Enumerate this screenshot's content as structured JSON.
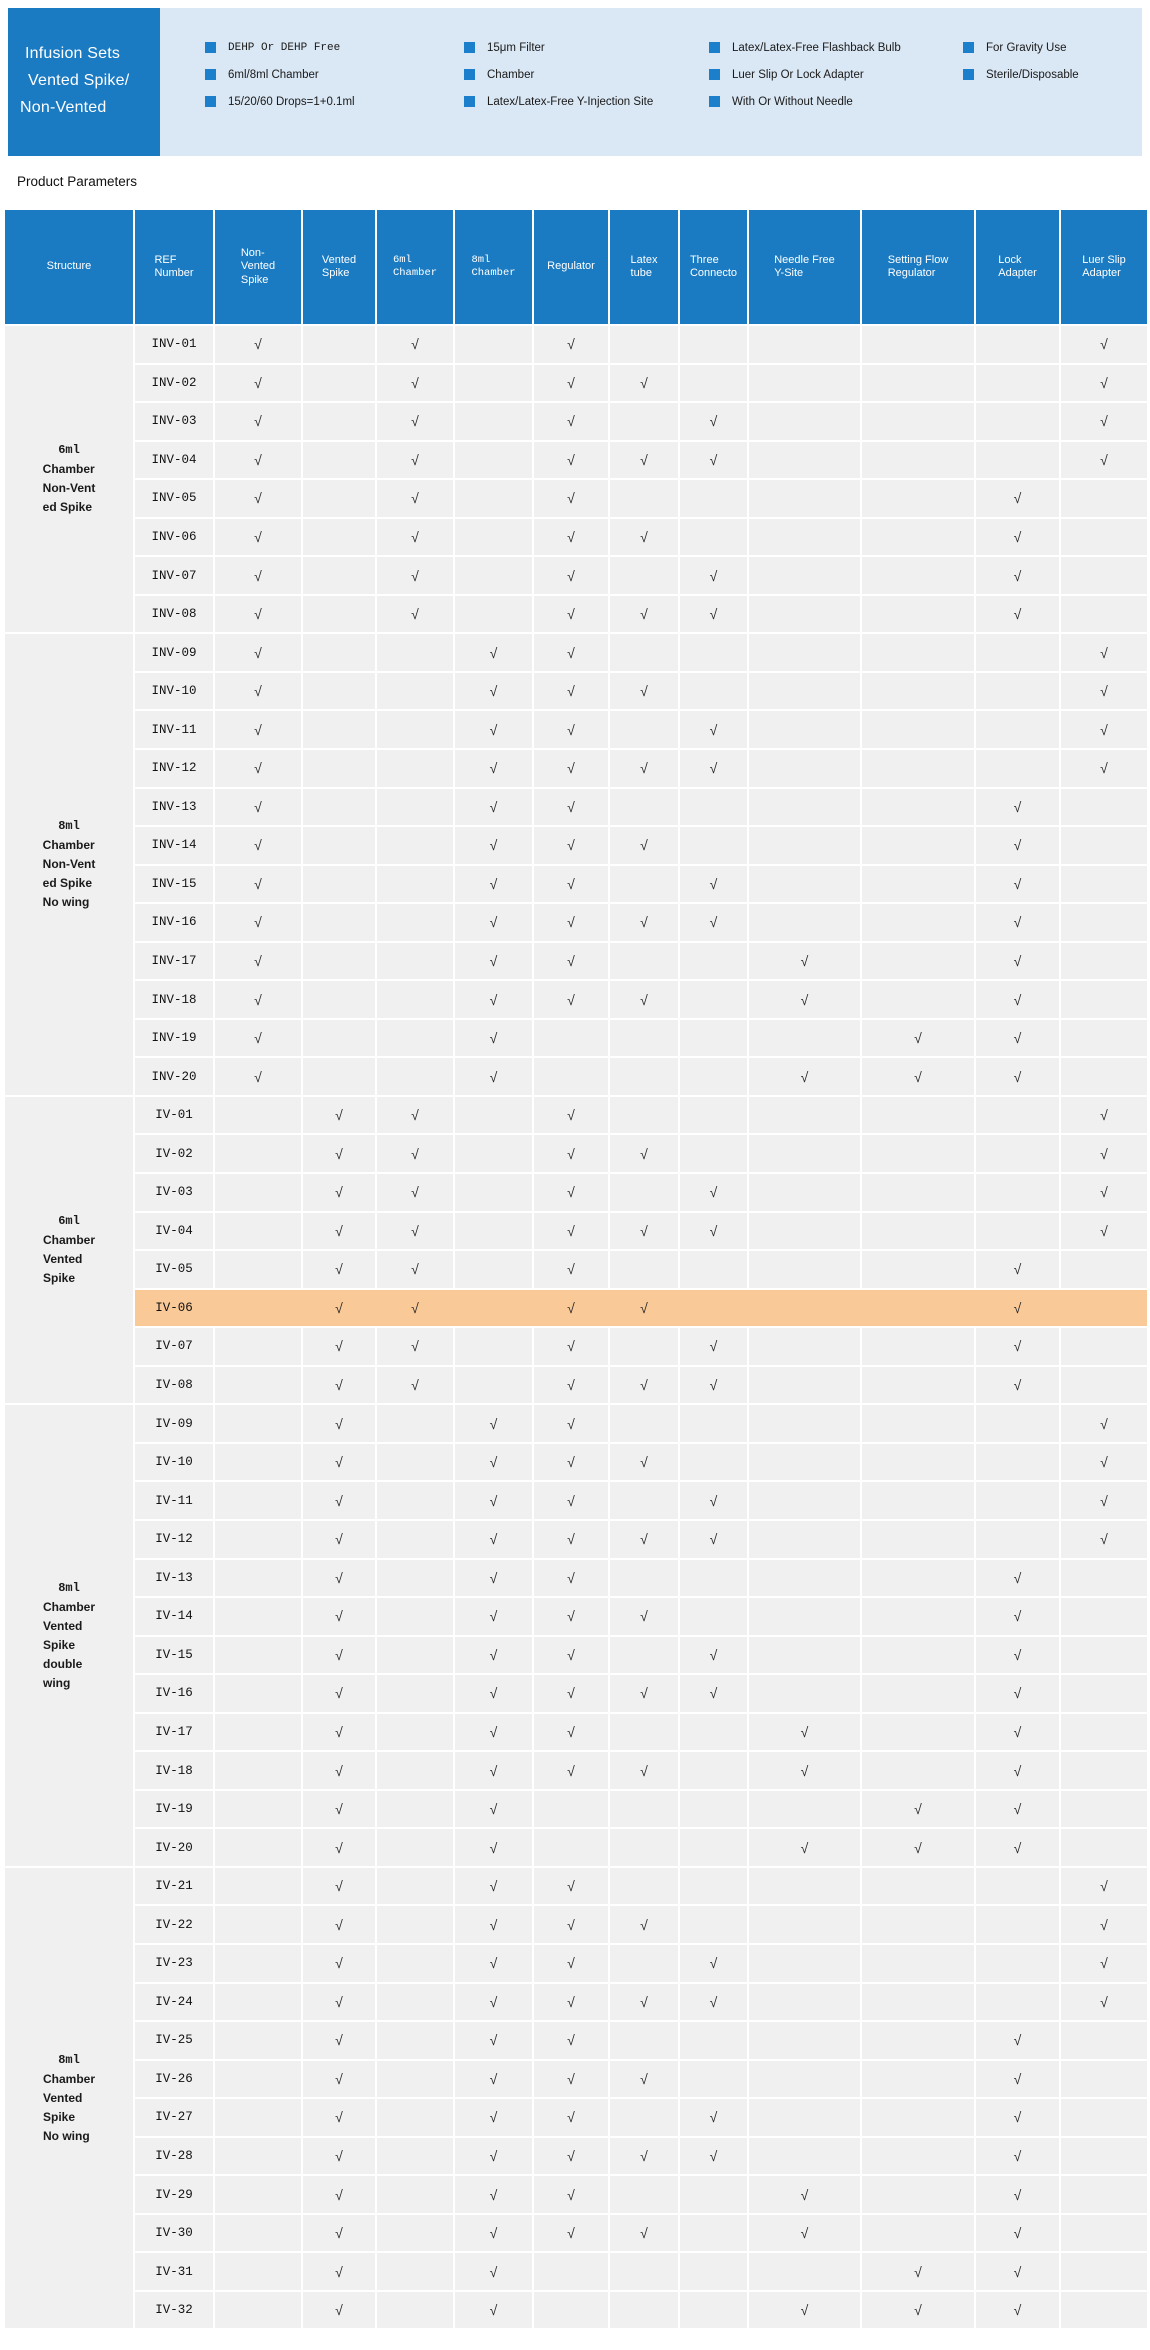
{
  "banner": {
    "title_lines": [
      "Infusion Sets",
      "Vented Spike/",
      "Non-Vented"
    ],
    "feature_columns": [
      {
        "items": [
          {
            "text": "DEHP Or DEHP Free",
            "mono": true
          },
          {
            "text": "6ml/8ml Chamber",
            "mono": false
          },
          {
            "text": "15/20/60 Drops=1+0.1ml",
            "mono": false
          }
        ]
      },
      {
        "items": [
          {
            "text": "15μm Filter",
            "mono": false
          },
          {
            "text": "Chamber",
            "mono": false
          },
          {
            "text": "Latex/Latex-Free Y-Injection Site",
            "mono": false
          }
        ]
      },
      {
        "items": [
          {
            "text": "Latex/Latex-Free Flashback Bulb",
            "mono": false
          },
          {
            "text": "Luer Slip Or Lock Adapter",
            "mono": false
          },
          {
            "text": "With Or Without Needle",
            "mono": false
          }
        ]
      },
      {
        "items": [
          {
            "text": "For Gravity Use",
            "mono": false
          },
          {
            "text": "Sterile/Disposable",
            "mono": false
          }
        ]
      }
    ]
  },
  "section_title": "Product Parameters",
  "colors": {
    "brand_blue": "#1A7AC2",
    "band_blue": "#DAE7F4",
    "cell_gray": "#F0F0F0",
    "highlight_orange": "#F9C997",
    "bullet_blue": "#1C7FCB"
  },
  "table": {
    "check_symbol": "√",
    "columns": [
      {
        "label": "Structure",
        "mono": false
      },
      {
        "label": "REF\nNumber",
        "mono": false
      },
      {
        "label": "Non-\nVented\nSpike",
        "mono": false
      },
      {
        "label": "Vented\nSpike",
        "mono": false
      },
      {
        "label": "6ml\nChamber",
        "mono": true
      },
      {
        "label": "8ml\nChamber",
        "mono": true
      },
      {
        "label": "Regulator",
        "mono": false
      },
      {
        "label": "Latex\ntube",
        "mono": false
      },
      {
        "label": "Three\nConnecto",
        "mono": false
      },
      {
        "label": "Needle Free\nY-Site",
        "mono": false
      },
      {
        "label": "Setting Flow\nRegulator",
        "mono": false
      },
      {
        "label": "Lock\nAdapter",
        "mono": false
      },
      {
        "label": "Luer Slip\nAdapter",
        "mono": false
      }
    ],
    "groups": [
      {
        "structure_lines": [
          "6ml",
          "Chamber",
          "Non-Vent",
          "ed Spike"
        ],
        "rows": [
          {
            "ref": "INV-01",
            "checks": [
              1,
              0,
              1,
              0,
              1,
              0,
              0,
              0,
              0,
              0,
              1
            ]
          },
          {
            "ref": "INV-02",
            "checks": [
              1,
              0,
              1,
              0,
              1,
              1,
              0,
              0,
              0,
              0,
              1
            ]
          },
          {
            "ref": "INV-03",
            "checks": [
              1,
              0,
              1,
              0,
              1,
              0,
              1,
              0,
              0,
              0,
              1
            ]
          },
          {
            "ref": "INV-04",
            "checks": [
              1,
              0,
              1,
              0,
              1,
              1,
              1,
              0,
              0,
              0,
              1
            ]
          },
          {
            "ref": "INV-05",
            "checks": [
              1,
              0,
              1,
              0,
              1,
              0,
              0,
              0,
              0,
              1,
              0
            ]
          },
          {
            "ref": "INV-06",
            "checks": [
              1,
              0,
              1,
              0,
              1,
              1,
              0,
              0,
              0,
              1,
              0
            ]
          },
          {
            "ref": "INV-07",
            "checks": [
              1,
              0,
              1,
              0,
              1,
              0,
              1,
              0,
              0,
              1,
              0
            ]
          },
          {
            "ref": "INV-08",
            "checks": [
              1,
              0,
              1,
              0,
              1,
              1,
              1,
              0,
              0,
              1,
              0
            ]
          }
        ]
      },
      {
        "structure_lines": [
          "8ml",
          "Chamber",
          "Non-Vent",
          "ed Spike",
          "No wing"
        ],
        "rows": [
          {
            "ref": "INV-09",
            "checks": [
              1,
              0,
              0,
              1,
              1,
              0,
              0,
              0,
              0,
              0,
              1
            ]
          },
          {
            "ref": "INV-10",
            "checks": [
              1,
              0,
              0,
              1,
              1,
              1,
              0,
              0,
              0,
              0,
              1
            ]
          },
          {
            "ref": "INV-11",
            "checks": [
              1,
              0,
              0,
              1,
              1,
              0,
              1,
              0,
              0,
              0,
              1
            ]
          },
          {
            "ref": "INV-12",
            "checks": [
              1,
              0,
              0,
              1,
              1,
              1,
              1,
              0,
              0,
              0,
              1
            ]
          },
          {
            "ref": "INV-13",
            "checks": [
              1,
              0,
              0,
              1,
              1,
              0,
              0,
              0,
              0,
              1,
              0
            ]
          },
          {
            "ref": "INV-14",
            "checks": [
              1,
              0,
              0,
              1,
              1,
              1,
              0,
              0,
              0,
              1,
              0
            ]
          },
          {
            "ref": "INV-15",
            "checks": [
              1,
              0,
              0,
              1,
              1,
              0,
              1,
              0,
              0,
              1,
              0
            ]
          },
          {
            "ref": "INV-16",
            "checks": [
              1,
              0,
              0,
              1,
              1,
              1,
              1,
              0,
              0,
              1,
              0
            ]
          },
          {
            "ref": "INV-17",
            "checks": [
              1,
              0,
              0,
              1,
              1,
              0,
              0,
              1,
              0,
              1,
              0
            ]
          },
          {
            "ref": "INV-18",
            "checks": [
              1,
              0,
              0,
              1,
              1,
              1,
              0,
              1,
              0,
              1,
              0
            ]
          },
          {
            "ref": "INV-19",
            "checks": [
              1,
              0,
              0,
              1,
              0,
              0,
              0,
              0,
              1,
              1,
              0
            ]
          },
          {
            "ref": "INV-20",
            "checks": [
              1,
              0,
              0,
              1,
              0,
              0,
              0,
              1,
              1,
              1,
              0
            ]
          }
        ]
      },
      {
        "structure_lines": [
          "6ml",
          "Chamber",
          "Vented",
          "Spike"
        ],
        "rows": [
          {
            "ref": "IV-01",
            "checks": [
              0,
              1,
              1,
              0,
              1,
              0,
              0,
              0,
              0,
              0,
              1
            ]
          },
          {
            "ref": "IV-02",
            "checks": [
              0,
              1,
              1,
              0,
              1,
              1,
              0,
              0,
              0,
              0,
              1
            ]
          },
          {
            "ref": "IV-03",
            "checks": [
              0,
              1,
              1,
              0,
              1,
              0,
              1,
              0,
              0,
              0,
              1
            ]
          },
          {
            "ref": "IV-04",
            "checks": [
              0,
              1,
              1,
              0,
              1,
              1,
              1,
              0,
              0,
              0,
              1
            ]
          },
          {
            "ref": "IV-05",
            "checks": [
              0,
              1,
              1,
              0,
              1,
              0,
              0,
              0,
              0,
              1,
              0
            ]
          },
          {
            "ref": "IV-06",
            "checks": [
              0,
              1,
              1,
              0,
              1,
              1,
              0,
              0,
              0,
              1,
              0
            ],
            "highlight": true
          },
          {
            "ref": "IV-07",
            "checks": [
              0,
              1,
              1,
              0,
              1,
              0,
              1,
              0,
              0,
              1,
              0
            ]
          },
          {
            "ref": "IV-08",
            "checks": [
              0,
              1,
              1,
              0,
              1,
              1,
              1,
              0,
              0,
              1,
              0
            ]
          }
        ]
      },
      {
        "structure_lines": [
          "8ml",
          "Chamber",
          "Vented",
          "Spike",
          "double",
          "wing"
        ],
        "rows": [
          {
            "ref": "IV-09",
            "checks": [
              0,
              1,
              0,
              1,
              1,
              0,
              0,
              0,
              0,
              0,
              1
            ]
          },
          {
            "ref": "IV-10",
            "checks": [
              0,
              1,
              0,
              1,
              1,
              1,
              0,
              0,
              0,
              0,
              1
            ]
          },
          {
            "ref": "IV-11",
            "checks": [
              0,
              1,
              0,
              1,
              1,
              0,
              1,
              0,
              0,
              0,
              1
            ]
          },
          {
            "ref": "IV-12",
            "checks": [
              0,
              1,
              0,
              1,
              1,
              1,
              1,
              0,
              0,
              0,
              1
            ]
          },
          {
            "ref": "IV-13",
            "checks": [
              0,
              1,
              0,
              1,
              1,
              0,
              0,
              0,
              0,
              1,
              0
            ]
          },
          {
            "ref": "IV-14",
            "checks": [
              0,
              1,
              0,
              1,
              1,
              1,
              0,
              0,
              0,
              1,
              0
            ]
          },
          {
            "ref": "IV-15",
            "checks": [
              0,
              1,
              0,
              1,
              1,
              0,
              1,
              0,
              0,
              1,
              0
            ]
          },
          {
            "ref": "IV-16",
            "checks": [
              0,
              1,
              0,
              1,
              1,
              1,
              1,
              0,
              0,
              1,
              0
            ]
          },
          {
            "ref": "IV-17",
            "checks": [
              0,
              1,
              0,
              1,
              1,
              0,
              0,
              1,
              0,
              1,
              0
            ]
          },
          {
            "ref": "IV-18",
            "checks": [
              0,
              1,
              0,
              1,
              1,
              1,
              0,
              1,
              0,
              1,
              0
            ]
          },
          {
            "ref": "IV-19",
            "checks": [
              0,
              1,
              0,
              1,
              0,
              0,
              0,
              0,
              1,
              1,
              0
            ]
          },
          {
            "ref": "IV-20",
            "checks": [
              0,
              1,
              0,
              1,
              0,
              0,
              0,
              1,
              1,
              1,
              0
            ]
          }
        ]
      },
      {
        "structure_lines": [
          "8ml",
          "Chamber",
          "Vented",
          "Spike",
          "No wing"
        ],
        "rows": [
          {
            "ref": "IV-21",
            "checks": [
              0,
              1,
              0,
              1,
              1,
              0,
              0,
              0,
              0,
              0,
              1
            ]
          },
          {
            "ref": "IV-22",
            "checks": [
              0,
              1,
              0,
              1,
              1,
              1,
              0,
              0,
              0,
              0,
              1
            ]
          },
          {
            "ref": "IV-23",
            "checks": [
              0,
              1,
              0,
              1,
              1,
              0,
              1,
              0,
              0,
              0,
              1
            ]
          },
          {
            "ref": "IV-24",
            "checks": [
              0,
              1,
              0,
              1,
              1,
              1,
              1,
              0,
              0,
              0,
              1
            ]
          },
          {
            "ref": "IV-25",
            "checks": [
              0,
              1,
              0,
              1,
              1,
              0,
              0,
              0,
              0,
              1,
              0
            ]
          },
          {
            "ref": "IV-26",
            "checks": [
              0,
              1,
              0,
              1,
              1,
              1,
              0,
              0,
              0,
              1,
              0
            ]
          },
          {
            "ref": "IV-27",
            "checks": [
              0,
              1,
              0,
              1,
              1,
              0,
              1,
              0,
              0,
              1,
              0
            ]
          },
          {
            "ref": "IV-28",
            "checks": [
              0,
              1,
              0,
              1,
              1,
              1,
              1,
              0,
              0,
              1,
              0
            ]
          },
          {
            "ref": "IV-29",
            "checks": [
              0,
              1,
              0,
              1,
              1,
              0,
              0,
              1,
              0,
              1,
              0
            ]
          },
          {
            "ref": "IV-30",
            "checks": [
              0,
              1,
              0,
              1,
              1,
              1,
              0,
              1,
              0,
              1,
              0
            ]
          },
          {
            "ref": "IV-31",
            "checks": [
              0,
              1,
              0,
              1,
              0,
              0,
              0,
              0,
              1,
              1,
              0
            ]
          },
          {
            "ref": "IV-32",
            "checks": [
              0,
              1,
              0,
              1,
              0,
              0,
              0,
              1,
              1,
              1,
              0
            ]
          }
        ]
      }
    ]
  }
}
